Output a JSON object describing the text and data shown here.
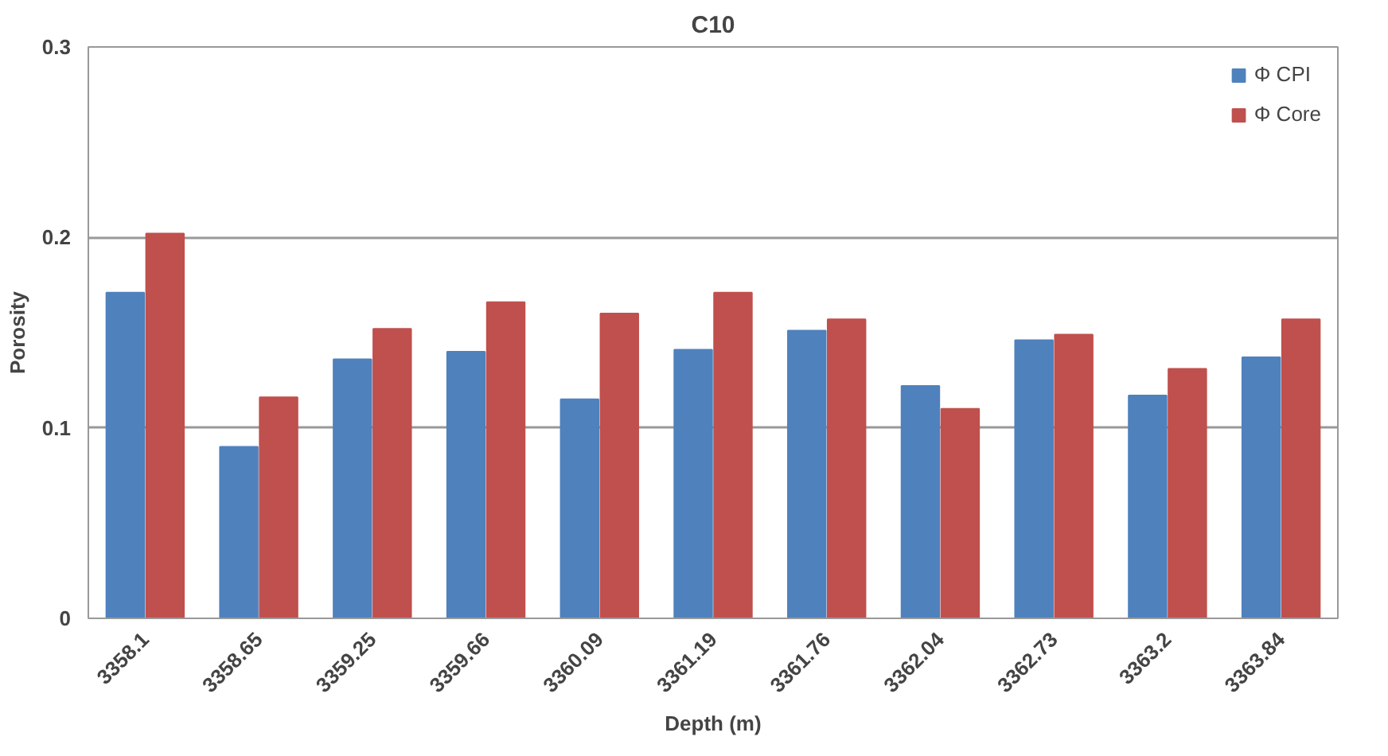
{
  "chart_data": {
    "type": "bar",
    "title": "C10",
    "xlabel": "Depth (m)",
    "ylabel": "Porosity",
    "categories": [
      "3358.1",
      "3358.65",
      "3359.25",
      "3359.66",
      "3360.09",
      "3361.19",
      "3361.76",
      "3362.04",
      "3362.73",
      "3363.2",
      "3363.84"
    ],
    "series": [
      {
        "name": "Φ CPI",
        "color": "#4f81bd",
        "values": [
          0.171,
          0.09,
          0.136,
          0.14,
          0.115,
          0.141,
          0.151,
          0.122,
          0.146,
          0.117,
          0.137
        ]
      },
      {
        "name": "Φ Core",
        "color": "#c0504d",
        "values": [
          0.202,
          0.116,
          0.152,
          0.166,
          0.16,
          0.171,
          0.157,
          0.11,
          0.149,
          0.131,
          0.157
        ]
      }
    ],
    "ylim": [
      0,
      0.3
    ],
    "yticks": [
      0,
      0.1,
      0.2,
      0.3
    ],
    "grid": "y",
    "legend": "top right"
  }
}
